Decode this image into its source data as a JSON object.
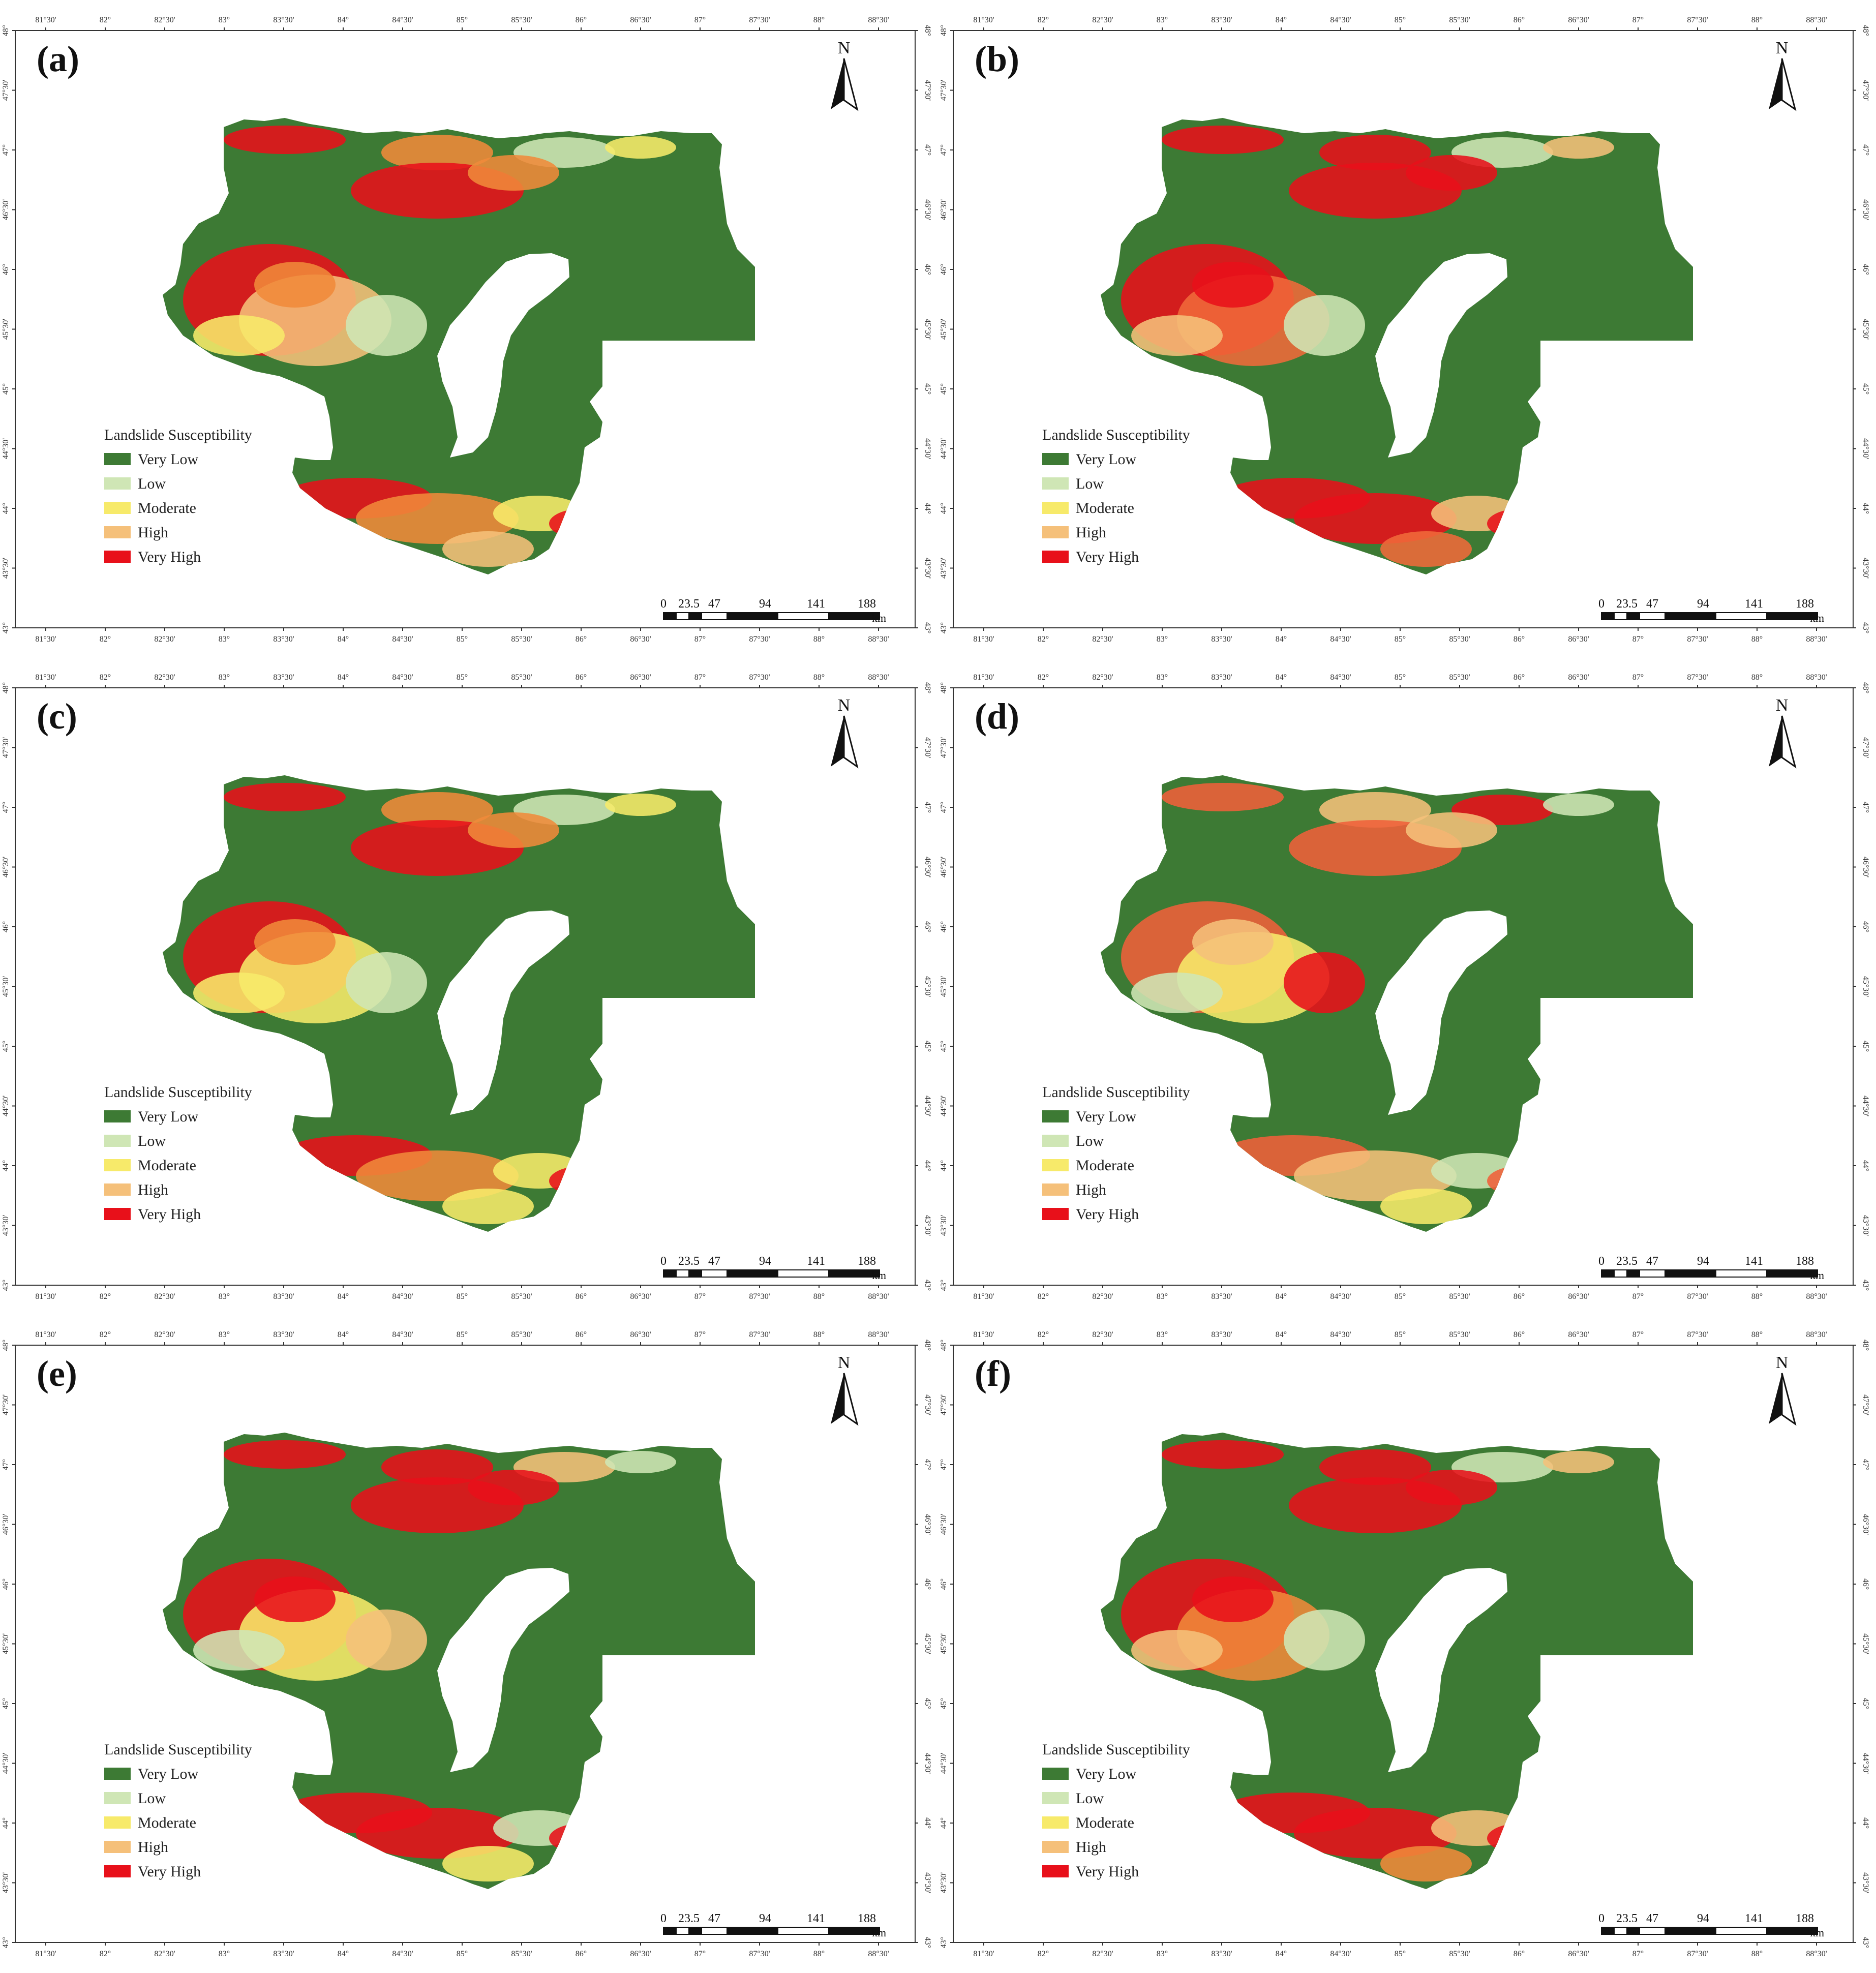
{
  "figure": {
    "legend_title": "Landslide Susceptibility",
    "legend_classes": [
      {
        "label": "Very Low",
        "color": "#3d7a34"
      },
      {
        "label": "Low",
        "color": "#cfe6b5"
      },
      {
        "label": "Moderate",
        "color": "#f7ea6a"
      },
      {
        "label": "High",
        "color": "#f5c07a"
      },
      {
        "label": "Very High",
        "color": "#e8101a"
      }
    ],
    "north_label": "N",
    "scale_labels": [
      "0",
      "23.5",
      "47",
      "94",
      "141",
      "188"
    ],
    "scale_unit": "km",
    "lon_labels": [
      "81°30'",
      "82°",
      "82°30'",
      "83°",
      "83°30'",
      "84°",
      "84°30'",
      "85°",
      "85°30'",
      "86°",
      "86°30'",
      "87°",
      "87°30'",
      "88°",
      "88°30'"
    ],
    "lat_labels": [
      "48°",
      "47°30'",
      "47°",
      "46°30'",
      "46°",
      "45°30'",
      "45°",
      "44°30'",
      "44°",
      "43°30'",
      "43°"
    ]
  },
  "panels": [
    {
      "label": "(a)",
      "dominant": "#e8501e",
      "colors": [
        "#e8101a",
        "#f08a3a",
        "#f5c07a",
        "#f7ea6a",
        "#cfe6b5"
      ]
    },
    {
      "label": "(b)",
      "dominant": "#e8101a",
      "colors": [
        "#e8101a",
        "#e8101a",
        "#f06a3a",
        "#f5c07a",
        "#cfe6b5"
      ]
    },
    {
      "label": "(c)",
      "dominant": "#e8301a",
      "colors": [
        "#e8101a",
        "#f08a3a",
        "#f7ea6a",
        "#f7ea6a",
        "#cfe6b5"
      ]
    },
    {
      "label": "(d)",
      "dominant": "#f07a3a",
      "colors": [
        "#f0603a",
        "#f5c07a",
        "#f7ea6a",
        "#cfe6b5",
        "#e8101a"
      ]
    },
    {
      "label": "(e)",
      "dominant": "#e8101a",
      "colors": [
        "#e8101a",
        "#e8101a",
        "#f7ea6a",
        "#cfe6b5",
        "#f5c07a"
      ]
    },
    {
      "label": "(f)",
      "dominant": "#e8101a",
      "colors": [
        "#e8101a",
        "#e8101a",
        "#f08a3a",
        "#f5c07a",
        "#cfe6b5"
      ]
    }
  ]
}
